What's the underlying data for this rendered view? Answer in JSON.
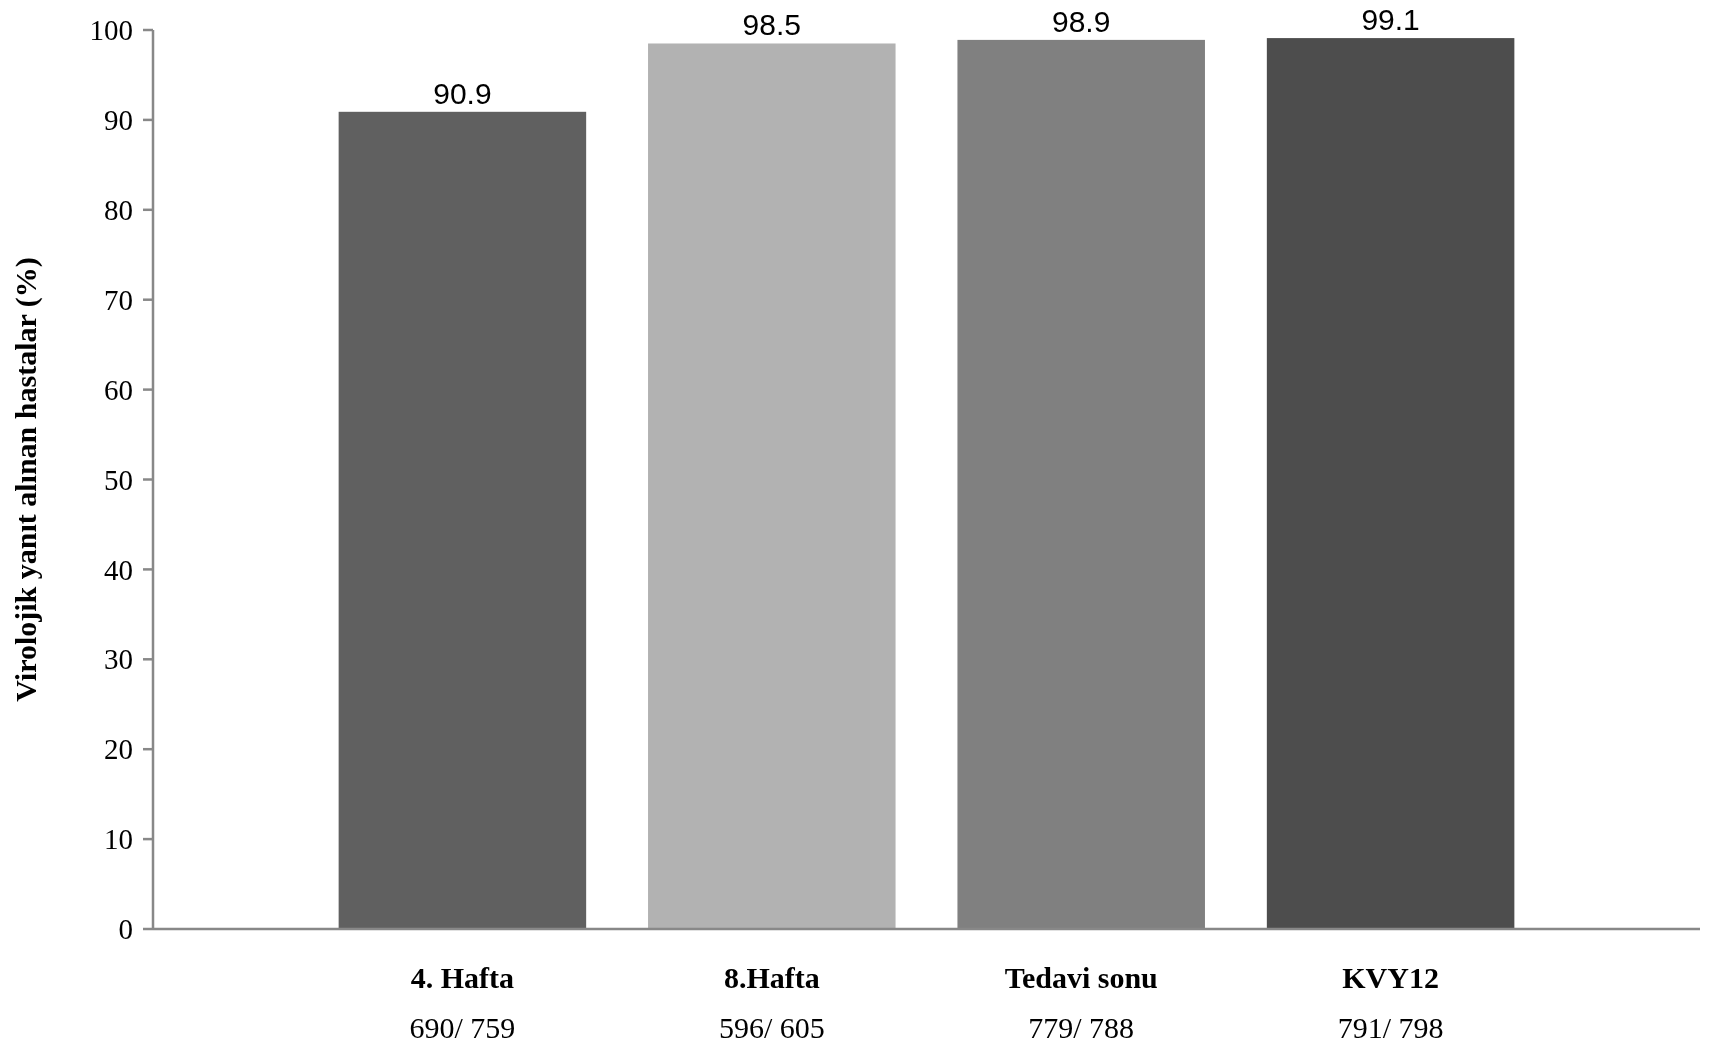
{
  "chart_data": {
    "type": "bar",
    "ylabel": "Virolojik yanıt alınan hastalar (%)",
    "categories": [
      "4. Hafta\n690/ 759",
      "8.Hafta\n596/ 605",
      "Tedavi sonu\n779/ 788",
      "KVY12\n791/ 798"
    ],
    "values": [
      90.9,
      98.5,
      98.9,
      99.1
    ],
    "colors": [
      "#606060",
      "#b2b2b2",
      "#808080",
      "#4d4d4d"
    ],
    "ylim": [
      0,
      100
    ],
    "yticks": [
      0,
      10,
      20,
      30,
      40,
      50,
      60,
      70,
      80,
      90,
      100
    ],
    "data_labels": true,
    "grid": false
  }
}
